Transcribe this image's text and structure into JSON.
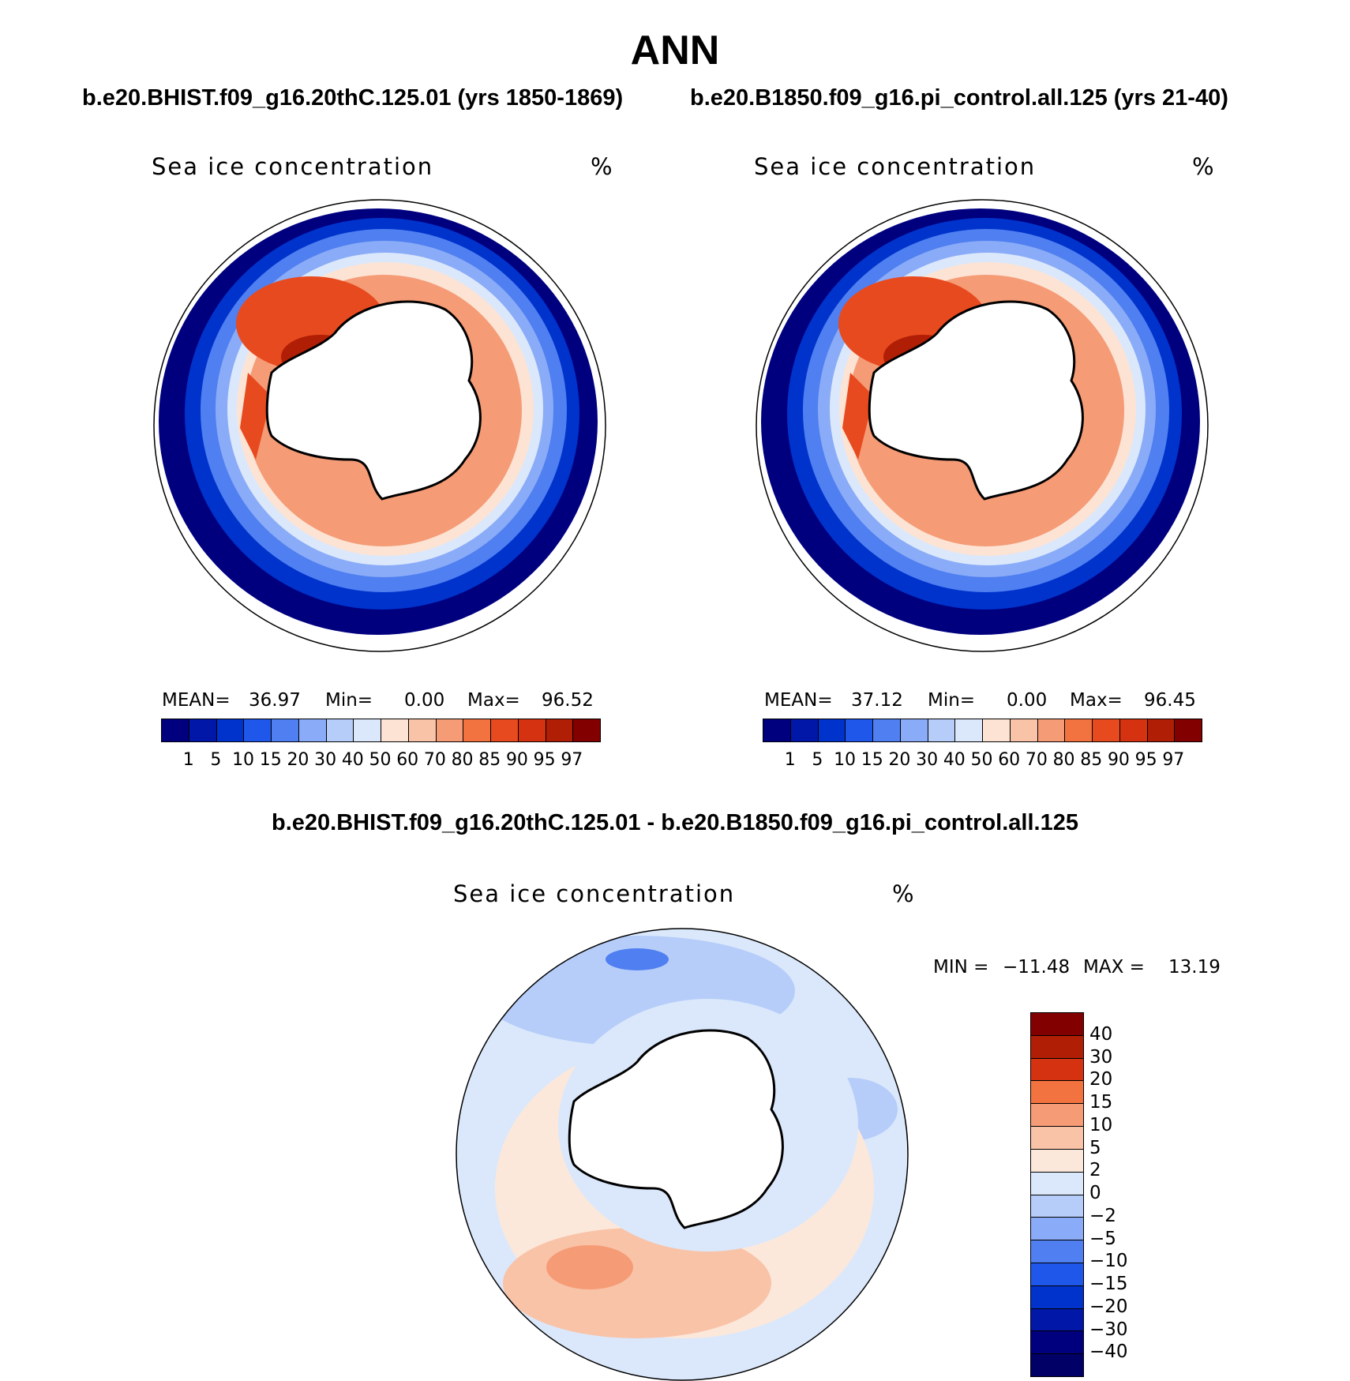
{
  "figure_title": "ANN",
  "left_panel": {
    "case_header": "b.e20.BHIST.f09_g16.20thC.125.01 (yrs 1850-1869)",
    "variable": "Sea ice concentration",
    "units": "%",
    "stats": {
      "mean_label": "MEAN=",
      "mean": "36.97",
      "min_label": "Min=",
      "min": "0.00",
      "max_label": "Max=",
      "max": "96.52"
    }
  },
  "right_panel": {
    "case_header": "b.e20.B1850.f09_g16.pi_control.all.125 (yrs 21-40)",
    "variable": "Sea ice concentration",
    "units": "%",
    "stats": {
      "mean_label": "MEAN=",
      "mean": "37.12",
      "min_label": "Min=",
      "min": "0.00",
      "max_label": "Max=",
      "max": "96.45"
    }
  },
  "diff_panel": {
    "case_header": "b.e20.BHIST.f09_g16.20thC.125.01 - b.e20.B1850.f09_g16.pi_control.all.125",
    "variable": "Sea ice concentration",
    "units": "%",
    "minmax": {
      "min_label": "MIN =",
      "min": "−11.48",
      "max_label": "MAX =",
      "max": "13.19"
    }
  },
  "abs_colorbar": {
    "ticks": [
      "1",
      "5",
      "10",
      "15",
      "20",
      "30",
      "40",
      "50",
      "60",
      "70",
      "80",
      "85",
      "90",
      "95",
      "97"
    ],
    "colors": [
      "#00007f",
      "#0017a8",
      "#0033cc",
      "#1f57ea",
      "#4f7ff0",
      "#8aabf7",
      "#b6cdfa",
      "#dbe8fb",
      "#fce3d4",
      "#f9c3a8",
      "#f59b76",
      "#f2733f",
      "#e84a1f",
      "#d43210",
      "#b01e05",
      "#830000"
    ]
  },
  "diff_colorbar": {
    "ticks": [
      "40",
      "30",
      "20",
      "15",
      "10",
      "5",
      "2",
      "0",
      "−2",
      "−5",
      "−10",
      "−15",
      "−20",
      "−30",
      "−40"
    ],
    "colors": [
      "#830000",
      "#b01e05",
      "#d43210",
      "#f2733f",
      "#f59b76",
      "#f9c3a8",
      "#fce8da",
      "#dbe8fb",
      "#b6cdfa",
      "#8aabf7",
      "#4f7ff0",
      "#1f57ea",
      "#0033cc",
      "#0017a8",
      "#00007f",
      "#000066"
    ]
  },
  "colors": {
    "land": "#ffffff",
    "coast": "#000000",
    "background": "#ffffff"
  }
}
